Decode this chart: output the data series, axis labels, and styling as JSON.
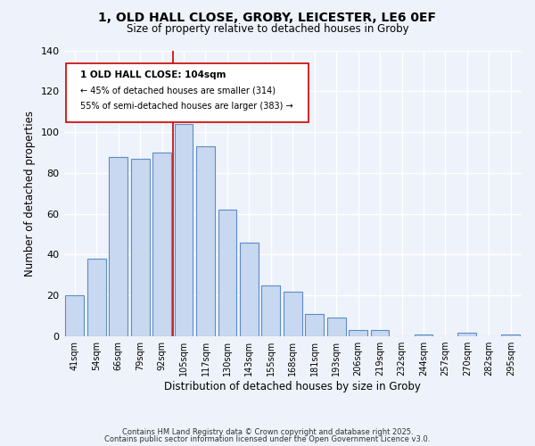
{
  "title_line1": "1, OLD HALL CLOSE, GROBY, LEICESTER, LE6 0EF",
  "title_line2": "Size of property relative to detached houses in Groby",
  "xlabel": "Distribution of detached houses by size in Groby",
  "ylabel": "Number of detached properties",
  "bar_labels": [
    "41sqm",
    "54sqm",
    "66sqm",
    "79sqm",
    "92sqm",
    "105sqm",
    "117sqm",
    "130sqm",
    "143sqm",
    "155sqm",
    "168sqm",
    "181sqm",
    "193sqm",
    "206sqm",
    "219sqm",
    "232sqm",
    "244sqm",
    "257sqm",
    "270sqm",
    "282sqm",
    "295sqm"
  ],
  "bar_values": [
    20,
    38,
    88,
    87,
    90,
    104,
    93,
    62,
    46,
    25,
    22,
    11,
    9,
    3,
    3,
    0,
    1,
    0,
    2,
    0,
    1
  ],
  "bar_color": "#c8d8f0",
  "bar_edge_color": "#5b8dc8",
  "ylim": [
    0,
    140
  ],
  "yticks": [
    0,
    20,
    40,
    60,
    80,
    100,
    120,
    140
  ],
  "marker_label_line1": "1 OLD HALL CLOSE: 104sqm",
  "marker_label_line2": "← 45% of detached houses are smaller (314)",
  "marker_label_line3": "55% of semi-detached houses are larger (383) →",
  "marker_color": "#cc0000",
  "background_color": "#eef2fa",
  "footer_line1": "Contains HM Land Registry data © Crown copyright and database right 2025.",
  "footer_line2": "Contains public sector information licensed under the Open Government Licence v3.0."
}
